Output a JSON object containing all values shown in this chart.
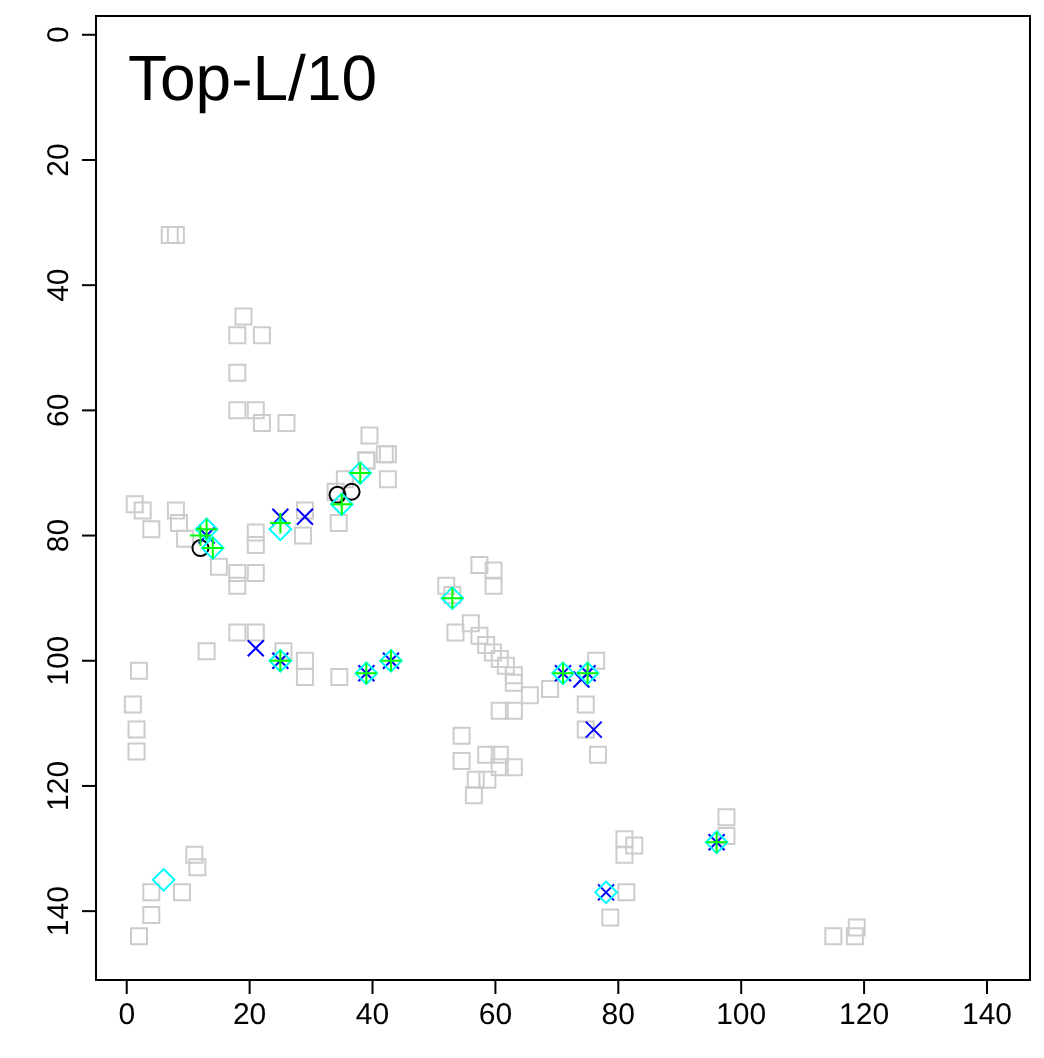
{
  "chart_data": {
    "type": "scatter",
    "title": "Top-L/10",
    "xlim": [
      -5,
      147
    ],
    "ylim": [
      151,
      -3
    ],
    "xticks": [
      0,
      20,
      40,
      60,
      80,
      100,
      120,
      140
    ],
    "yticks": [
      0,
      20,
      40,
      60,
      80,
      100,
      120,
      140
    ],
    "grid": false,
    "series": [
      {
        "color": "#cccccc",
        "marker": "square",
        "x": [
          7,
          8,
          19,
          18,
          22,
          18,
          18,
          21,
          22,
          26,
          39.5,
          39,
          42.5,
          42.5,
          35.5,
          34.5,
          1.3,
          2.6,
          4,
          8,
          8.5,
          9.5,
          15,
          18,
          18,
          21,
          21,
          21,
          29,
          28.7,
          2,
          1,
          1.6,
          1.6,
          13,
          18,
          21,
          25.5,
          29,
          29,
          34.6,
          11,
          11.5,
          4,
          9,
          4,
          2,
          42,
          39,
          34,
          57.4,
          59.7,
          59.7,
          52,
          53,
          53.5,
          56,
          57.4,
          58.5,
          59.6,
          60.7,
          61.7,
          63,
          63,
          65.6,
          68.9,
          60.7,
          63,
          60.7,
          63,
          54.5,
          54.5,
          58.5,
          60.7,
          56.8,
          58.7,
          56.5,
          76.4,
          74.7,
          74.7,
          76.7,
          97.6,
          97.6,
          81,
          82.6,
          81,
          81.3,
          78.7,
          115,
          118.5,
          118.8
        ],
        "values": [
          32,
          32,
          45,
          48,
          48,
          54,
          60,
          60,
          62,
          62,
          64,
          68,
          67,
          71,
          71,
          78,
          75,
          76,
          79,
          76,
          78,
          80.5,
          85,
          86,
          88,
          86,
          79.5,
          81.5,
          76,
          80,
          101.6,
          107,
          111,
          114.5,
          98.5,
          95.5,
          95.5,
          98.5,
          100,
          102.6,
          102.6,
          131,
          133,
          137,
          137,
          140.6,
          144,
          67,
          68,
          73,
          84.7,
          85.6,
          88,
          88,
          89.5,
          95.5,
          94,
          96,
          97.5,
          98.7,
          99.7,
          100.8,
          102.3,
          103.5,
          105.5,
          104.5,
          108,
          108,
          117,
          117,
          112,
          116,
          115,
          115,
          119,
          119,
          121.5,
          100,
          107,
          111,
          115,
          125,
          128,
          128.5,
          129.5,
          131,
          137,
          141,
          144,
          144,
          142.6
        ]
      },
      {
        "color": "#000000",
        "marker": "circle",
        "x": [
          12,
          34.3,
          36.6
        ],
        "values": [
          82,
          73.5,
          73
        ]
      },
      {
        "color": "#0000ff",
        "marker": "cross",
        "x": [
          13,
          25,
          29,
          21,
          25,
          39,
          43,
          71,
          75,
          74,
          76,
          78,
          96
        ],
        "values": [
          80,
          77,
          77,
          98,
          100,
          102,
          100,
          102,
          102,
          103,
          111,
          137,
          129
        ]
      },
      {
        "color": "#00ffff",
        "marker": "diamond",
        "x": [
          13,
          14,
          25,
          35,
          38,
          25,
          39,
          43,
          53,
          71,
          75,
          78,
          96,
          6
        ],
        "values": [
          79,
          82,
          79,
          75,
          70,
          100,
          102,
          100,
          90,
          102,
          102,
          137,
          129,
          135
        ]
      },
      {
        "color": "#00ff00",
        "marker": "plus",
        "x": [
          12,
          13,
          14,
          25,
          35,
          38,
          25,
          39,
          43,
          53,
          71,
          75,
          96
        ],
        "values": [
          80,
          79,
          82,
          78,
          75,
          70,
          100,
          102,
          100,
          90,
          102,
          102,
          129
        ]
      }
    ]
  }
}
